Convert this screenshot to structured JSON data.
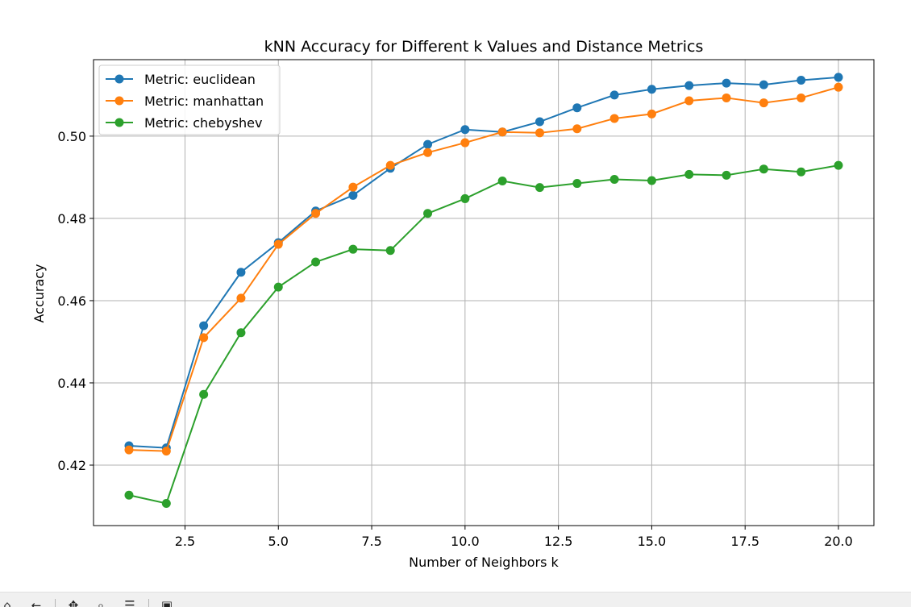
{
  "chart_data": {
    "type": "line",
    "title": "kNN Accuracy for Different k Values and Distance Metrics",
    "xlabel": "Number of Neighbors k",
    "ylabel": "Accuracy",
    "xlim": [
      0.05,
      20.95
    ],
    "ylim": [
      0.4053,
      0.5186
    ],
    "xticks": [
      2.5,
      5.0,
      7.5,
      10.0,
      12.5,
      15.0,
      17.5,
      20.0
    ],
    "xtick_labels": [
      "2.5",
      "5.0",
      "7.5",
      "10.0",
      "12.5",
      "15.0",
      "17.5",
      "20.0"
    ],
    "yticks": [
      0.42,
      0.44,
      0.46,
      0.48,
      0.5
    ],
    "ytick_labels": [
      "0.42",
      "0.44",
      "0.46",
      "0.48",
      "0.50"
    ],
    "grid": true,
    "legend_position": "top-left",
    "x": [
      1,
      2,
      3,
      4,
      5,
      6,
      7,
      8,
      9,
      10,
      11,
      12,
      13,
      14,
      15,
      16,
      17,
      18,
      19,
      20
    ],
    "series": [
      {
        "name": "Metric: euclidean",
        "color": "#1f77b4",
        "values": [
          0.4247,
          0.4242,
          0.4539,
          0.4669,
          0.4741,
          0.4818,
          0.4856,
          0.4922,
          0.498,
          0.5016,
          0.501,
          0.5035,
          0.5069,
          0.51,
          0.5114,
          0.5123,
          0.5129,
          0.5125,
          0.5136,
          0.5143
        ]
      },
      {
        "name": "Metric: manhattan",
        "color": "#ff7f0e",
        "values": [
          0.4237,
          0.4234,
          0.451,
          0.4606,
          0.4737,
          0.4812,
          0.4876,
          0.4929,
          0.496,
          0.4984,
          0.501,
          0.5008,
          0.5018,
          0.5043,
          0.5054,
          0.5086,
          0.5093,
          0.5081,
          0.5093,
          0.5119
        ]
      },
      {
        "name": "Metric: chebyshev",
        "color": "#2ca02c",
        "values": [
          0.4127,
          0.4107,
          0.4372,
          0.4522,
          0.4633,
          0.4694,
          0.4725,
          0.4722,
          0.4812,
          0.4848,
          0.4891,
          0.4875,
          0.4885,
          0.4895,
          0.4892,
          0.4907,
          0.4905,
          0.492,
          0.4913,
          0.4929
        ]
      }
    ]
  },
  "toolbar": {
    "icons": [
      "home-icon",
      "back-icon",
      "forward-icon",
      "pan-icon",
      "zoom-icon",
      "configure-icon",
      "save-icon"
    ]
  }
}
